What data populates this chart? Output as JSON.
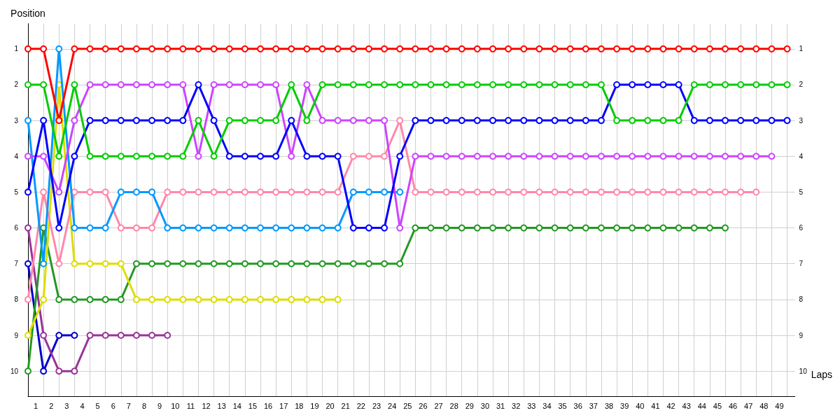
{
  "chart_data": {
    "type": "line",
    "xlabel": "Laps",
    "ylabel": "Position",
    "x": [
      0,
      1,
      2,
      3,
      4,
      5,
      6,
      7,
      8,
      9,
      10,
      11,
      12,
      13,
      14,
      15,
      16,
      17,
      18,
      19,
      20,
      21,
      22,
      23,
      24,
      25,
      26,
      27,
      28,
      29,
      30,
      31,
      32,
      33,
      34,
      35,
      36,
      37,
      38,
      39,
      40,
      41,
      42,
      43,
      44,
      45,
      46,
      47,
      48,
      49
    ],
    "xlim": [
      0,
      49.5
    ],
    "xticks": [
      {
        "value": 0.5,
        "label": "1"
      },
      {
        "value": 1.5,
        "label": "2"
      },
      {
        "value": 2.5,
        "label": "3"
      },
      {
        "value": 3.5,
        "label": "4"
      },
      {
        "value": 4.5,
        "label": "5"
      },
      {
        "value": 5.5,
        "label": "6"
      },
      {
        "value": 6.5,
        "label": "7"
      },
      {
        "value": 7.5,
        "label": "8"
      },
      {
        "value": 8.5,
        "label": "9"
      },
      {
        "value": 9.5,
        "label": "10"
      },
      {
        "value": 10.5,
        "label": "11"
      },
      {
        "value": 11.5,
        "label": "12"
      },
      {
        "value": 12.5,
        "label": "13"
      },
      {
        "value": 13.5,
        "label": "14"
      },
      {
        "value": 14.5,
        "label": "15"
      },
      {
        "value": 15.5,
        "label": "16"
      },
      {
        "value": 16.5,
        "label": "17"
      },
      {
        "value": 17.5,
        "label": "18"
      },
      {
        "value": 18.5,
        "label": "19"
      },
      {
        "value": 19.5,
        "label": "20"
      },
      {
        "value": 20.5,
        "label": "21"
      },
      {
        "value": 21.5,
        "label": "22"
      },
      {
        "value": 22.5,
        "label": "23"
      },
      {
        "value": 23.5,
        "label": "24"
      },
      {
        "value": 24.5,
        "label": "25"
      },
      {
        "value": 25.5,
        "label": "26"
      },
      {
        "value": 26.5,
        "label": "27"
      },
      {
        "value": 27.5,
        "label": "28"
      },
      {
        "value": 28.5,
        "label": "29"
      },
      {
        "value": 29.5,
        "label": "30"
      },
      {
        "value": 30.5,
        "label": "31"
      },
      {
        "value": 31.5,
        "label": "32"
      },
      {
        "value": 32.5,
        "label": "33"
      },
      {
        "value": 33.5,
        "label": "34"
      },
      {
        "value": 34.5,
        "label": "35"
      },
      {
        "value": 35.5,
        "label": "36"
      },
      {
        "value": 36.5,
        "label": "37"
      },
      {
        "value": 37.5,
        "label": "38"
      },
      {
        "value": 38.5,
        "label": "39"
      },
      {
        "value": 39.5,
        "label": "40"
      },
      {
        "value": 40.5,
        "label": "41"
      },
      {
        "value": 41.5,
        "label": "42"
      },
      {
        "value": 42.5,
        "label": "43"
      },
      {
        "value": 43.5,
        "label": "44"
      },
      {
        "value": 44.5,
        "label": "45"
      },
      {
        "value": 45.5,
        "label": "46"
      },
      {
        "value": 46.5,
        "label": "47"
      },
      {
        "value": 47.5,
        "label": "48"
      },
      {
        "value": 48.5,
        "label": "49"
      }
    ],
    "ylim": [
      10.7,
      0.3
    ],
    "yticks": [
      1,
      2,
      3,
      4,
      5,
      6,
      7,
      8,
      9,
      10
    ],
    "y2lim": [
      10.7,
      0.3
    ],
    "y2ticks": [
      1,
      2,
      3,
      4,
      5,
      6,
      7,
      8,
      9,
      10
    ],
    "grid": true,
    "marker": "circle",
    "line_style": "solid",
    "series": [
      {
        "color": "#ff0000",
        "values": [
          1,
          1,
          3,
          1,
          1,
          1,
          1,
          1,
          1,
          1,
          1,
          1,
          1,
          1,
          1,
          1,
          1,
          1,
          1,
          1,
          1,
          1,
          1,
          1,
          1,
          1,
          1,
          1,
          1,
          1,
          1,
          1,
          1,
          1,
          1,
          1,
          1,
          1,
          1,
          1,
          1,
          1,
          1,
          1,
          1,
          1,
          1,
          1,
          1,
          1
        ]
      },
      {
        "color": "#00cc00",
        "values": [
          2,
          2,
          4,
          2,
          4,
          4,
          4,
          4,
          4,
          4,
          4,
          3,
          4,
          3,
          3,
          3,
          3,
          2,
          3,
          2,
          2,
          2,
          2,
          2,
          2,
          2,
          2,
          2,
          2,
          2,
          2,
          2,
          2,
          2,
          2,
          2,
          2,
          2,
          3,
          3,
          3,
          3,
          3,
          2,
          2,
          2,
          2,
          2,
          2,
          2
        ]
      },
      {
        "color": "#0000ff",
        "values": [
          5,
          3,
          6,
          4,
          3,
          3,
          3,
          3,
          3,
          3,
          3,
          2,
          3,
          4,
          4,
          4,
          4,
          3,
          4,
          4,
          4,
          6,
          6,
          6,
          4,
          3,
          3,
          3,
          3,
          3,
          3,
          3,
          3,
          3,
          3,
          3,
          3,
          3,
          2,
          2,
          2,
          2,
          2,
          3,
          3,
          3,
          3,
          3,
          3,
          3
        ]
      },
      {
        "color": "#cc44ff",
        "values": [
          4,
          4,
          5,
          3,
          2,
          2,
          2,
          2,
          2,
          2,
          2,
          4,
          2,
          2,
          2,
          2,
          2,
          4,
          2,
          3,
          3,
          3,
          3,
          3,
          6,
          4,
          4,
          4,
          4,
          4,
          4,
          4,
          4,
          4,
          4,
          4,
          4,
          4,
          4,
          4,
          4,
          4,
          4,
          4,
          4,
          4,
          4,
          4,
          4,
          null
        ]
      },
      {
        "color": "#0099ff",
        "values": [
          3,
          7,
          1,
          6,
          6,
          6,
          5,
          5,
          5,
          6,
          6,
          6,
          6,
          6,
          6,
          6,
          6,
          6,
          6,
          6,
          6,
          5,
          5,
          5,
          5,
          null,
          null,
          null,
          null,
          null,
          null,
          null,
          null,
          null,
          null,
          null,
          null,
          null,
          null,
          null,
          null,
          null,
          null,
          null,
          null,
          null,
          null,
          null,
          null,
          null
        ]
      },
      {
        "color": "#ff88aa",
        "values": [
          8,
          5,
          7,
          5,
          5,
          5,
          6,
          6,
          6,
          5,
          5,
          5,
          5,
          5,
          5,
          5,
          5,
          5,
          5,
          5,
          5,
          4,
          4,
          4,
          3,
          5,
          5,
          5,
          5,
          5,
          5,
          5,
          5,
          5,
          5,
          5,
          5,
          5,
          5,
          5,
          5,
          5,
          5,
          5,
          5,
          5,
          5,
          5,
          null,
          null
        ]
      },
      {
        "color": "#dddd00",
        "values": [
          9,
          8,
          2,
          7,
          7,
          7,
          7,
          8,
          8,
          8,
          8,
          8,
          8,
          8,
          8,
          8,
          8,
          8,
          8,
          8,
          8,
          null,
          null,
          null,
          null,
          null,
          null,
          null,
          null,
          null,
          null,
          null,
          null,
          null,
          null,
          null,
          null,
          null,
          null,
          null,
          null,
          null,
          null,
          null,
          null,
          null,
          null,
          null,
          null,
          null
        ]
      },
      {
        "color": "#229922",
        "values": [
          10,
          6,
          8,
          8,
          8,
          8,
          8,
          7,
          7,
          7,
          7,
          7,
          7,
          7,
          7,
          7,
          7,
          7,
          7,
          7,
          7,
          7,
          7,
          7,
          7,
          6,
          6,
          6,
          6,
          6,
          6,
          6,
          6,
          6,
          6,
          6,
          6,
          6,
          6,
          6,
          6,
          6,
          6,
          6,
          6,
          6,
          null,
          null,
          null,
          null
        ]
      },
      {
        "color": "#993399",
        "values": [
          6,
          9,
          10,
          10,
          9,
          9,
          9,
          9,
          9,
          9,
          null,
          null,
          null,
          null,
          null,
          null,
          null,
          null,
          null,
          null,
          null,
          null,
          null,
          null,
          null,
          null,
          null,
          null,
          null,
          null,
          null,
          null,
          null,
          null,
          null,
          null,
          null,
          null,
          null,
          null,
          null,
          null,
          null,
          null,
          null,
          null,
          null,
          null,
          null,
          null
        ]
      },
      {
        "color": "#0000cc",
        "values": [
          7,
          10,
          9,
          9,
          null,
          null,
          null,
          null,
          null,
          null,
          null,
          null,
          null,
          null,
          null,
          null,
          null,
          null,
          null,
          null,
          null,
          null,
          null,
          null,
          null,
          null,
          null,
          null,
          null,
          null,
          null,
          null,
          null,
          null,
          null,
          null,
          null,
          null,
          null,
          null,
          null,
          null,
          null,
          null,
          null,
          null,
          null,
          null,
          null,
          null
        ]
      }
    ]
  }
}
